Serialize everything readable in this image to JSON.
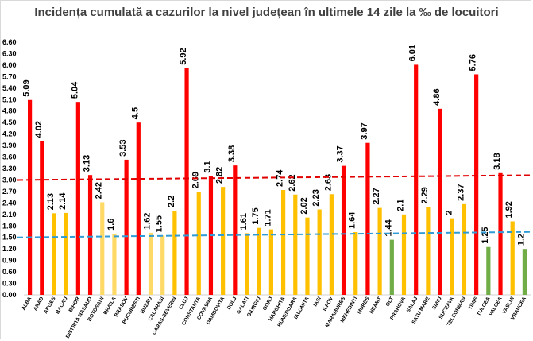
{
  "chart_data": {
    "type": "bar",
    "title": "Incidența cumulată a cazurilor la nivel județean în ultimele 14 zile la ‰ de locuitori",
    "xlabel": "",
    "ylabel": "",
    "ylim": [
      0,
      6.6
    ],
    "yticks": [
      "0.00",
      "0.30",
      "0.60",
      "0.90",
      "1.20",
      "1.50",
      "1.80",
      "2.10",
      "2.40",
      "2.70",
      "3.00",
      "3.30",
      "3.60",
      "3.90",
      "4.20",
      "4.50",
      "4.80",
      "5.10",
      "5.40",
      "5.70",
      "6.00",
      "6.30",
      "6.60"
    ],
    "categories": [
      "ALBA",
      "ARAD",
      "ARGES",
      "BACAU",
      "BIHOR",
      "BISTRITA NASAUD",
      "BOTOSANI",
      "BRAILA",
      "BRASOV",
      "BUCURESTI",
      "BUZAU",
      "CALARASI",
      "CARAS-SEVERIN",
      "CLUJ",
      "CONSTANTA",
      "COVASNA",
      "DAMBOVITA",
      "DOLJ",
      "GALATI",
      "GIURGIU",
      "GORJ",
      "HARGHITA",
      "HUNEDOARA",
      "IALOMITA",
      "IASI",
      "ILFOV",
      "MARAMURES",
      "MEHEDINTI",
      "MURES",
      "NEAMT",
      "OLT",
      "PRAHOVA",
      "SALAJ",
      "SATU MARE",
      "SIBIU",
      "SUCEAVA",
      "TELEORMAN",
      "TIMIS",
      "TULCEA",
      "VALCEA",
      "VASLUI",
      "VRANCEA"
    ],
    "values": [
      5.09,
      4.02,
      2.13,
      2.14,
      5.04,
      3.13,
      2.42,
      1.6,
      3.53,
      4.5,
      1.62,
      1.55,
      2.2,
      5.92,
      2.69,
      3.1,
      2.82,
      3.38,
      1.61,
      1.75,
      1.71,
      2.74,
      2.62,
      2.02,
      2.23,
      2.63,
      3.37,
      1.64,
      3.97,
      2.27,
      1.44,
      2.1,
      6.01,
      2.29,
      4.86,
      2,
      2.37,
      5.76,
      1.25,
      3.18,
      1.92,
      1.2
    ],
    "labels": [
      "5.09",
      "4.02",
      "2.13",
      "2.14",
      "5.04",
      "3.13",
      "2.42",
      "1.6",
      "3.53",
      "4.5",
      "1.62",
      "1.55",
      "2.2",
      "5.92",
      "2.69",
      "3.1",
      "2.82",
      "3.38",
      "1.61",
      "1.75",
      "1.71",
      "2.74",
      "2.62",
      "2.02",
      "2.23",
      "2.63",
      "3.37",
      "1.64",
      "3.97",
      "2.27",
      "1.44",
      "2.1",
      "6.01",
      "2.29",
      "4.86",
      "2",
      "2.37",
      "5.76",
      "1.25",
      "3.18",
      "1.92",
      "1.2"
    ],
    "colors": [
      "red",
      "red",
      "yellow",
      "yellow",
      "red",
      "red",
      "lightyellow",
      "lightyellow",
      "red",
      "red",
      "lightyellow",
      "lightyellow",
      "yellow",
      "red",
      "yellow",
      "red",
      "yellow",
      "red",
      "yellow",
      "yellow",
      "yellow",
      "yellow",
      "yellow",
      "yellow",
      "yellow",
      "yellow",
      "red",
      "yellow",
      "red",
      "yellow",
      "green",
      "yellow",
      "red",
      "yellow",
      "red",
      "yellow",
      "yellow",
      "red",
      "green",
      "red",
      "yellow",
      "green"
    ],
    "palette": {
      "red": "#ff0000",
      "yellow": "#ffc000",
      "lightyellow": "#ffd966",
      "green": "#70ad47"
    },
    "reference_lines": [
      {
        "value": 3.0,
        "color": "#e00000",
        "style": "dashed"
      },
      {
        "value": 1.5,
        "color": "#2e9bd6",
        "style": "dashed"
      }
    ],
    "grid": false,
    "legend": "none"
  }
}
